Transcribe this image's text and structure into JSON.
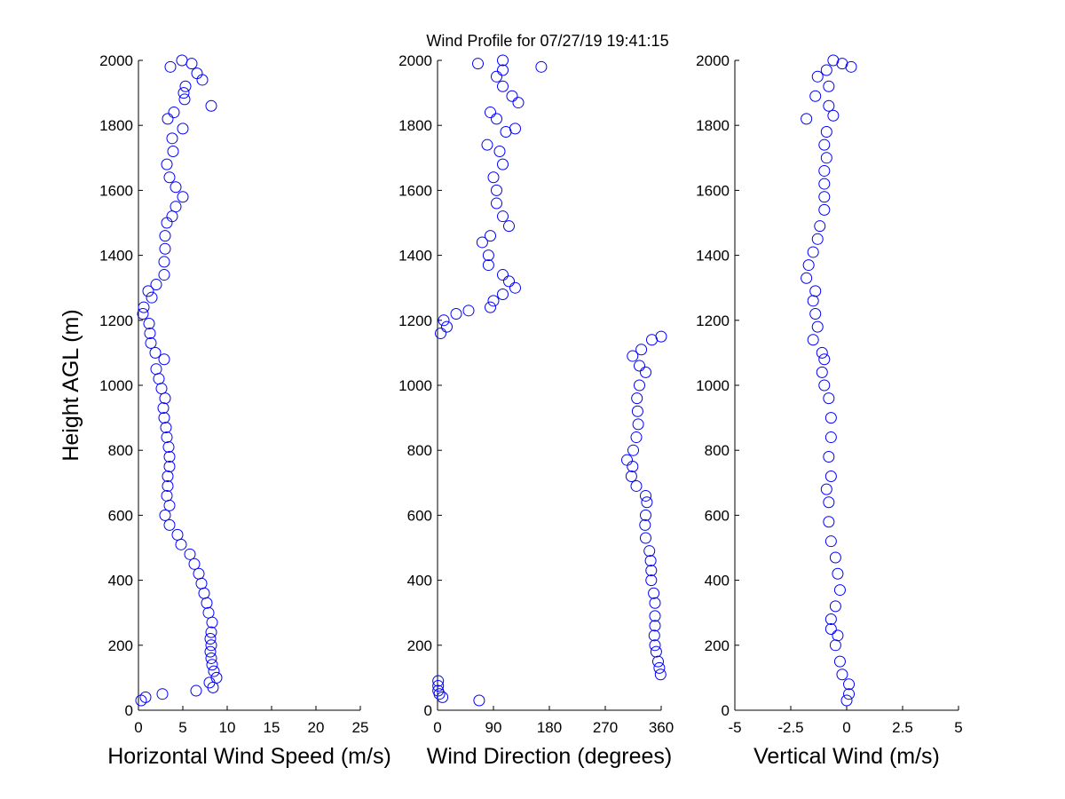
{
  "chart_data": {
    "type": "scatter",
    "title": "Wind Profile for  07/27/19 19:41:15",
    "ylabel": "Height AGL (m)",
    "marker_color": "#0000ff",
    "panels": [
      {
        "xlabel": "Horizontal Wind Speed (m/s)",
        "xlim": [
          0,
          25
        ],
        "ylim": [
          0,
          2000
        ],
        "xticks": [
          "0",
          "5",
          "10",
          "15",
          "20",
          "25"
        ],
        "xtick_values": [
          0,
          5,
          10,
          15,
          20,
          25
        ],
        "yticks": [
          "0",
          "200",
          "400",
          "600",
          "800",
          "1000",
          "1200",
          "1400",
          "1600",
          "1800",
          "2000"
        ],
        "points": [
          [
            0.3,
            30
          ],
          [
            0.8,
            40
          ],
          [
            2.7,
            50
          ],
          [
            6.5,
            60
          ],
          [
            8.4,
            70
          ],
          [
            8.0,
            85
          ],
          [
            8.8,
            100
          ],
          [
            8.5,
            120
          ],
          [
            8.3,
            140
          ],
          [
            8.2,
            160
          ],
          [
            8.1,
            180
          ],
          [
            8.2,
            200
          ],
          [
            8.1,
            220
          ],
          [
            8.2,
            240
          ],
          [
            8.3,
            270
          ],
          [
            7.9,
            300
          ],
          [
            7.7,
            330
          ],
          [
            7.4,
            360
          ],
          [
            7.1,
            390
          ],
          [
            6.8,
            420
          ],
          [
            6.3,
            450
          ],
          [
            5.8,
            480
          ],
          [
            4.8,
            510
          ],
          [
            4.4,
            540
          ],
          [
            3.5,
            570
          ],
          [
            3.0,
            600
          ],
          [
            3.5,
            630
          ],
          [
            3.2,
            660
          ],
          [
            3.3,
            690
          ],
          [
            3.3,
            720
          ],
          [
            3.5,
            750
          ],
          [
            3.5,
            780
          ],
          [
            3.4,
            810
          ],
          [
            3.2,
            840
          ],
          [
            3.1,
            870
          ],
          [
            2.9,
            900
          ],
          [
            2.8,
            930
          ],
          [
            3.0,
            960
          ],
          [
            2.6,
            990
          ],
          [
            2.3,
            1020
          ],
          [
            2.0,
            1050
          ],
          [
            2.9,
            1080
          ],
          [
            1.9,
            1100
          ],
          [
            1.4,
            1130
          ],
          [
            1.3,
            1160
          ],
          [
            1.2,
            1190
          ],
          [
            0.5,
            1220
          ],
          [
            0.6,
            1240
          ],
          [
            1.5,
            1270
          ],
          [
            1.1,
            1290
          ],
          [
            2.0,
            1310
          ],
          [
            2.9,
            1340
          ],
          [
            2.9,
            1380
          ],
          [
            3.0,
            1420
          ],
          [
            3.0,
            1460
          ],
          [
            3.2,
            1500
          ],
          [
            3.8,
            1520
          ],
          [
            4.2,
            1550
          ],
          [
            5.0,
            1580
          ],
          [
            4.2,
            1610
          ],
          [
            3.5,
            1640
          ],
          [
            3.2,
            1680
          ],
          [
            3.9,
            1720
          ],
          [
            3.8,
            1760
          ],
          [
            5.0,
            1790
          ],
          [
            3.3,
            1820
          ],
          [
            4.0,
            1840
          ],
          [
            8.2,
            1860
          ],
          [
            5.2,
            1880
          ],
          [
            5.1,
            1900
          ],
          [
            5.3,
            1920
          ],
          [
            7.2,
            1940
          ],
          [
            6.6,
            1960
          ],
          [
            3.6,
            1980
          ],
          [
            6.0,
            1990
          ],
          [
            4.9,
            2000
          ]
        ]
      },
      {
        "xlabel": "Wind Direction (degrees)",
        "xlim": [
          0,
          360
        ],
        "ylim": [
          0,
          2000
        ],
        "xticks": [
          "0",
          "90",
          "180",
          "270",
          "360"
        ],
        "xtick_values": [
          0,
          90,
          180,
          270,
          360
        ],
        "yticks": [
          "0",
          "200",
          "400",
          "600",
          "800",
          "1000",
          "1200",
          "1400",
          "1600",
          "1800",
          "2000"
        ],
        "points": [
          [
            67,
            30
          ],
          [
            8,
            40
          ],
          [
            3,
            50
          ],
          [
            1,
            60
          ],
          [
            1,
            75
          ],
          [
            1,
            90
          ],
          [
            359,
            110
          ],
          [
            357,
            130
          ],
          [
            355,
            150
          ],
          [
            352,
            180
          ],
          [
            350,
            200
          ],
          [
            349,
            230
          ],
          [
            350,
            260
          ],
          [
            350,
            290
          ],
          [
            350,
            330
          ],
          [
            348,
            360
          ],
          [
            344,
            400
          ],
          [
            344,
            430
          ],
          [
            343,
            460
          ],
          [
            341,
            490
          ],
          [
            335,
            530
          ],
          [
            334,
            570
          ],
          [
            335,
            600
          ],
          [
            337,
            640
          ],
          [
            335,
            660
          ],
          [
            320,
            690
          ],
          [
            312,
            720
          ],
          [
            314,
            750
          ],
          [
            305,
            770
          ],
          [
            315,
            800
          ],
          [
            320,
            840
          ],
          [
            323,
            880
          ],
          [
            322,
            920
          ],
          [
            321,
            960
          ],
          [
            325,
            1000
          ],
          [
            335,
            1040
          ],
          [
            325,
            1060
          ],
          [
            314,
            1090
          ],
          [
            328,
            1110
          ],
          [
            345,
            1140
          ],
          [
            360,
            1150
          ],
          [
            5,
            1160
          ],
          [
            15,
            1180
          ],
          [
            10,
            1200
          ],
          [
            30,
            1220
          ],
          [
            50,
            1230
          ],
          [
            85,
            1240
          ],
          [
            90,
            1260
          ],
          [
            105,
            1280
          ],
          [
            125,
            1300
          ],
          [
            115,
            1320
          ],
          [
            105,
            1340
          ],
          [
            82,
            1370
          ],
          [
            82,
            1400
          ],
          [
            72,
            1440
          ],
          [
            85,
            1460
          ],
          [
            115,
            1490
          ],
          [
            105,
            1520
          ],
          [
            95,
            1560
          ],
          [
            95,
            1600
          ],
          [
            90,
            1640
          ],
          [
            105,
            1680
          ],
          [
            100,
            1720
          ],
          [
            80,
            1740
          ],
          [
            110,
            1780
          ],
          [
            125,
            1790
          ],
          [
            95,
            1820
          ],
          [
            85,
            1840
          ],
          [
            130,
            1870
          ],
          [
            120,
            1890
          ],
          [
            105,
            1920
          ],
          [
            95,
            1950
          ],
          [
            105,
            1970
          ],
          [
            167,
            1980
          ],
          [
            65,
            1990
          ],
          [
            105,
            2000
          ]
        ]
      },
      {
        "xlabel": "Vertical Wind (m/s)",
        "xlim": [
          -5,
          5
        ],
        "ylim": [
          0,
          2000
        ],
        "xticks": [
          "-5",
          "-2.5",
          "0",
          "2.5",
          "5"
        ],
        "xtick_values": [
          -5,
          -2.5,
          0,
          2.5,
          5
        ],
        "yticks": [
          "0",
          "200",
          "400",
          "600",
          "800",
          "1000",
          "1200",
          "1400",
          "1600",
          "1800",
          "2000"
        ],
        "points": [
          [
            0,
            30
          ],
          [
            0.1,
            50
          ],
          [
            0.1,
            80
          ],
          [
            -0.2,
            110
          ],
          [
            -0.3,
            150
          ],
          [
            -0.5,
            200
          ],
          [
            -0.4,
            230
          ],
          [
            -0.7,
            250
          ],
          [
            -0.7,
            280
          ],
          [
            -0.5,
            320
          ],
          [
            -0.3,
            370
          ],
          [
            -0.4,
            420
          ],
          [
            -0.5,
            470
          ],
          [
            -0.7,
            520
          ],
          [
            -0.8,
            580
          ],
          [
            -0.8,
            640
          ],
          [
            -0.9,
            680
          ],
          [
            -0.7,
            720
          ],
          [
            -0.8,
            780
          ],
          [
            -0.7,
            840
          ],
          [
            -0.7,
            900
          ],
          [
            -0.8,
            960
          ],
          [
            -1.0,
            1000
          ],
          [
            -1.1,
            1040
          ],
          [
            -1.0,
            1080
          ],
          [
            -1.1,
            1100
          ],
          [
            -1.5,
            1140
          ],
          [
            -1.3,
            1180
          ],
          [
            -1.4,
            1220
          ],
          [
            -1.5,
            1260
          ],
          [
            -1.4,
            1290
          ],
          [
            -1.8,
            1330
          ],
          [
            -1.7,
            1370
          ],
          [
            -1.5,
            1410
          ],
          [
            -1.3,
            1450
          ],
          [
            -1.2,
            1490
          ],
          [
            -1.0,
            1540
          ],
          [
            -1.0,
            1580
          ],
          [
            -1.0,
            1620
          ],
          [
            -1.0,
            1660
          ],
          [
            -0.9,
            1700
          ],
          [
            -1.0,
            1740
          ],
          [
            -0.9,
            1780
          ],
          [
            -1.8,
            1820
          ],
          [
            -0.6,
            1830
          ],
          [
            -0.8,
            1860
          ],
          [
            -1.4,
            1890
          ],
          [
            -0.8,
            1920
          ],
          [
            -1.3,
            1950
          ],
          [
            -0.9,
            1970
          ],
          [
            0.2,
            1980
          ],
          [
            -0.2,
            1990
          ],
          [
            -0.6,
            2000
          ]
        ]
      }
    ]
  }
}
